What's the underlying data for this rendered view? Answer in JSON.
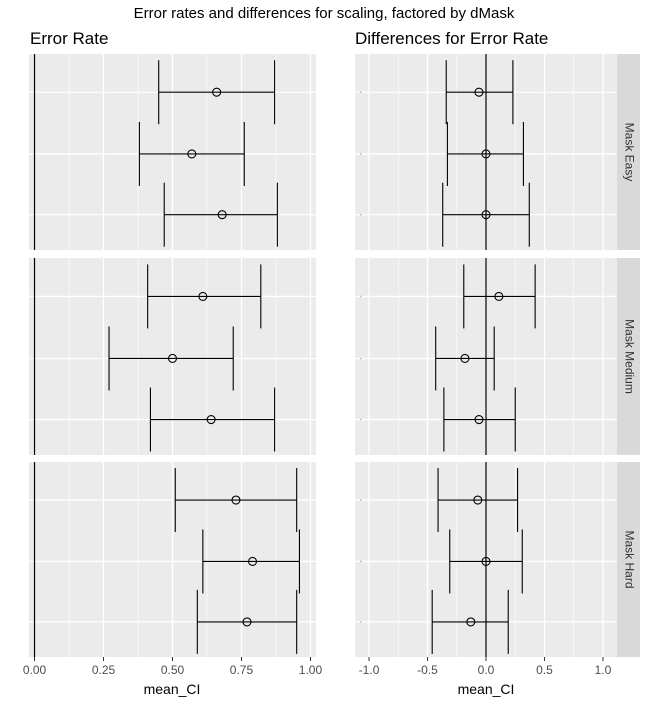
{
  "title": "Error rates and differences for scaling, factored by dMask",
  "colors": {
    "panel_bg": "#ebebeb",
    "grid": "#ffffff",
    "strip_bg": "#d9d9d9",
    "mark": "#000000",
    "ref_point": "#f4a6a6"
  },
  "chart_data": [
    {
      "type": "errorbar",
      "title": "Error Rate",
      "xlabel": "mean_CI",
      "ylabel": "",
      "xlim": [
        -0.02,
        1.02
      ],
      "xticks": [
        0.0,
        0.25,
        0.5,
        0.75,
        1.0
      ],
      "xtick_labels": [
        "0.00",
        "0.25",
        "0.50",
        "0.75",
        "1.00"
      ],
      "vline": 0,
      "grid": true,
      "facets": [
        {
          "name": "Mask Easy",
          "points": [
            {
              "mean": 0.66,
              "lo": 0.45,
              "hi": 0.87
            },
            {
              "mean": 0.57,
              "lo": 0.38,
              "hi": 0.76
            },
            {
              "mean": 0.68,
              "lo": 0.47,
              "hi": 0.88
            }
          ]
        },
        {
          "name": "Mask Medium",
          "points": [
            {
              "mean": 0.61,
              "lo": 0.41,
              "hi": 0.82
            },
            {
              "mean": 0.5,
              "lo": 0.27,
              "hi": 0.72
            },
            {
              "mean": 0.64,
              "lo": 0.42,
              "hi": 0.87
            }
          ]
        },
        {
          "name": "Mask Hard",
          "points": [
            {
              "mean": 0.73,
              "lo": 0.51,
              "hi": 0.95
            },
            {
              "mean": 0.79,
              "lo": 0.61,
              "hi": 0.96
            },
            {
              "mean": 0.77,
              "lo": 0.59,
              "hi": 0.95
            }
          ]
        }
      ]
    },
    {
      "type": "errorbar",
      "title": "Differences for Error Rate",
      "xlabel": "mean_CI",
      "ylabel": "",
      "xlim": [
        -1.12,
        1.12
      ],
      "xticks": [
        -1.0,
        -0.5,
        0.0,
        0.5,
        1.0
      ],
      "xtick_labels": [
        "-1.0",
        "-0.5",
        "0.0",
        "0.5",
        "1.0"
      ],
      "vline": 0,
      "ref_points_x": -1.07,
      "grid": true,
      "facets": [
        {
          "name": "Mask Easy",
          "points": [
            {
              "mean": -0.06,
              "lo": -0.34,
              "hi": 0.23
            },
            {
              "mean": 0.0,
              "lo": -0.33,
              "hi": 0.32
            },
            {
              "mean": 0.0,
              "lo": -0.37,
              "hi": 0.37
            }
          ]
        },
        {
          "name": "Mask Medium",
          "points": [
            {
              "mean": 0.11,
              "lo": -0.19,
              "hi": 0.42
            },
            {
              "mean": -0.18,
              "lo": -0.43,
              "hi": 0.07
            },
            {
              "mean": -0.06,
              "lo": -0.36,
              "hi": 0.25
            }
          ]
        },
        {
          "name": "Mask Hard",
          "points": [
            {
              "mean": -0.07,
              "lo": -0.41,
              "hi": 0.27
            },
            {
              "mean": 0.0,
              "lo": -0.31,
              "hi": 0.31
            },
            {
              "mean": -0.13,
              "lo": -0.46,
              "hi": 0.19
            }
          ]
        }
      ]
    }
  ]
}
